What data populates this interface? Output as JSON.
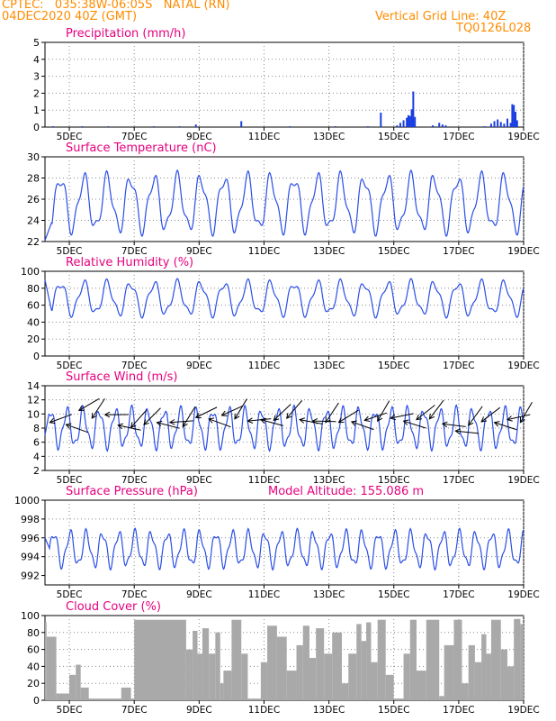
{
  "header": {
    "line1": "CPTEC:   035:38W-06:05S   NATAL (RN)",
    "line2": "04DEC2020 40Z (GMT)",
    "right1": "Vertical Grid Line: 40Z",
    "right2": "TQ0126L028"
  },
  "colors": {
    "header": "#ff8c00",
    "title": "#e6007e",
    "line": "#2a4ee6",
    "arrow": "#000000",
    "cloud": "#a9a9a9",
    "precip": "#1a3fe0"
  },
  "x_ticks": [
    "5DEC",
    "7DEC",
    "9DEC",
    "11DEC",
    "13DEC",
    "15DEC",
    "17DEC",
    "19DEC"
  ],
  "x_range_days": [
    4.25,
    19.0
  ],
  "chart_data": [
    {
      "type": "bar",
      "title": "Precipitation (mm/h)",
      "ylim": [
        0,
        5
      ],
      "y_ticks": [
        "0",
        "1",
        "2",
        "3",
        "4",
        "5"
      ],
      "x": [
        4.5,
        5.4,
        6.2,
        7.6,
        8.4,
        8.9,
        10.3,
        11.8,
        13.2,
        14.2,
        14.6,
        15.1,
        15.2,
        15.3,
        15.4,
        15.45,
        15.5,
        15.55,
        15.6,
        15.65,
        16.2,
        16.4,
        16.5,
        16.6,
        17.8,
        18.0,
        18.1,
        18.2,
        18.3,
        18.4,
        18.5,
        18.6,
        18.65,
        18.7,
        18.75,
        18.8
      ],
      "values": [
        0.05,
        0.05,
        0.05,
        0.05,
        0.05,
        0.15,
        0.35,
        0.05,
        0.05,
        0.05,
        0.85,
        0.1,
        0.25,
        0.4,
        0.55,
        0.7,
        0.65,
        1.05,
        2.1,
        0.6,
        0.1,
        0.25,
        0.15,
        0.1,
        0.05,
        0.2,
        0.35,
        0.45,
        0.3,
        0.2,
        0.5,
        0.25,
        1.35,
        1.3,
        0.9,
        0.4
      ]
    },
    {
      "type": "line",
      "title": "Surface Temperature (nC)",
      "ylim": [
        22,
        30
      ],
      "y_ticks": [
        "22",
        "24",
        "26",
        "28",
        "30"
      ],
      "params": {
        "base": 25.6,
        "amp": 2.4,
        "period": 0.72,
        "phase": 4.55,
        "start": 22.1,
        "ramp_end": 4.45
      }
    },
    {
      "type": "line",
      "title": "Relative Humidity (%)",
      "ylim": [
        0,
        100
      ],
      "y_ticks": [
        "0",
        "20",
        "40",
        "60",
        "80",
        "100"
      ],
      "params": {
        "base": 68,
        "amp": 18,
        "period": 0.72,
        "phase": 4.55,
        "start": 90,
        "ramp_end": 4.45
      }
    },
    {
      "type": "line",
      "title": "Surface Wind (m/s)",
      "ylim": [
        2,
        14
      ],
      "y_ticks": [
        "2",
        "4",
        "6",
        "8",
        "10",
        "12",
        "14"
      ],
      "params": {
        "base": 8,
        "amp": 2.5,
        "period": 0.5,
        "phase": 4.3,
        "start": 7,
        "ramp_end": 4.35
      },
      "arrows_x": [
        4.4,
        4.9,
        5.3,
        5.7,
        6.1,
        6.5,
        6.9,
        7.3,
        7.7,
        8.1,
        8.5,
        8.9,
        9.3,
        9.7,
        10.1,
        10.5,
        10.9,
        11.3,
        11.7,
        12.1,
        12.5,
        12.9,
        13.3,
        13.7,
        14.1,
        14.5,
        14.9,
        15.3,
        15.7,
        16.1,
        16.5,
        16.9,
        17.3,
        17.7,
        18.1,
        18.5,
        18.9
      ],
      "arrows_y": [
        8.8,
        8.5,
        10.5,
        9.4,
        9.9,
        8.4,
        8.1,
        8.5,
        8.8,
        8.8,
        8.2,
        9.5,
        9.3,
        9.8,
        9.3,
        9.0,
        9.2,
        9.1,
        9.4,
        9.2,
        9.0,
        8.8,
        8.8,
        8.9,
        9.1,
        9.0,
        9.4,
        9.0,
        9.2,
        9.3,
        8.6,
        7.6,
        8.4,
        8.9,
        8.8,
        9.2,
        8.8
      ]
    },
    {
      "type": "line",
      "title": "Surface Pressure (hPa)",
      "subtitle": "Model Altitude: 155.086 m",
      "ylim": [
        991,
        1000
      ],
      "y_ticks": [
        "992",
        "994",
        "996",
        "998",
        "1000"
      ],
      "params": {
        "base": 994.8,
        "amp": 1.7,
        "period": 0.5,
        "phase": 4.4,
        "start": 996.0,
        "ramp_end": 4.4
      }
    },
    {
      "type": "bar",
      "title": "Cloud Cover (%)",
      "ylim": [
        0,
        100
      ],
      "y_ticks": [
        "0",
        "20",
        "40",
        "60",
        "80",
        "100"
      ],
      "segments": [
        [
          4.25,
          4.3,
          92
        ],
        [
          4.3,
          4.6,
          75
        ],
        [
          4.6,
          5.0,
          8
        ],
        [
          5.0,
          5.2,
          30
        ],
        [
          5.2,
          5.35,
          42
        ],
        [
          5.35,
          5.6,
          15
        ],
        [
          5.6,
          6.6,
          2
        ],
        [
          6.6,
          6.9,
          15
        ],
        [
          6.9,
          7.0,
          2
        ],
        [
          7.0,
          8.6,
          95
        ],
        [
          8.6,
          8.8,
          60
        ],
        [
          8.8,
          8.95,
          82
        ],
        [
          8.95,
          9.1,
          55
        ],
        [
          9.1,
          9.3,
          85
        ],
        [
          9.3,
          9.5,
          55
        ],
        [
          9.5,
          9.65,
          80
        ],
        [
          9.65,
          9.75,
          20
        ],
        [
          9.75,
          10.0,
          35
        ],
        [
          10.0,
          10.3,
          95
        ],
        [
          10.3,
          10.5,
          55
        ],
        [
          10.5,
          10.9,
          2
        ],
        [
          10.9,
          11.1,
          45
        ],
        [
          11.1,
          11.4,
          88
        ],
        [
          11.4,
          11.7,
          75
        ],
        [
          11.7,
          12.0,
          35
        ],
        [
          12.0,
          12.2,
          65
        ],
        [
          12.2,
          12.4,
          88
        ],
        [
          12.4,
          12.6,
          50
        ],
        [
          12.6,
          12.85,
          85
        ],
        [
          12.85,
          13.1,
          55
        ],
        [
          13.1,
          13.4,
          80
        ],
        [
          13.4,
          13.6,
          20
        ],
        [
          13.6,
          13.85,
          55
        ],
        [
          13.85,
          14.0,
          90
        ],
        [
          14.0,
          14.15,
          70
        ],
        [
          14.15,
          14.3,
          92
        ],
        [
          14.3,
          14.5,
          45
        ],
        [
          14.5,
          14.75,
          95
        ],
        [
          14.75,
          15.0,
          30
        ],
        [
          15.0,
          15.3,
          2
        ],
        [
          15.3,
          15.5,
          55
        ],
        [
          15.5,
          15.7,
          95
        ],
        [
          15.7,
          16.0,
          35
        ],
        [
          16.0,
          16.4,
          95
        ],
        [
          16.4,
          16.55,
          5
        ],
        [
          16.55,
          16.85,
          65
        ],
        [
          16.85,
          17.1,
          95
        ],
        [
          17.1,
          17.3,
          20
        ],
        [
          17.3,
          17.5,
          65
        ],
        [
          17.5,
          17.7,
          45
        ],
        [
          17.7,
          17.85,
          78
        ],
        [
          17.85,
          18.0,
          55
        ],
        [
          18.0,
          18.3,
          95
        ],
        [
          18.3,
          18.5,
          60
        ],
        [
          18.5,
          18.7,
          40
        ],
        [
          18.7,
          18.9,
          96
        ],
        [
          18.9,
          19.0,
          90
        ]
      ]
    }
  ]
}
